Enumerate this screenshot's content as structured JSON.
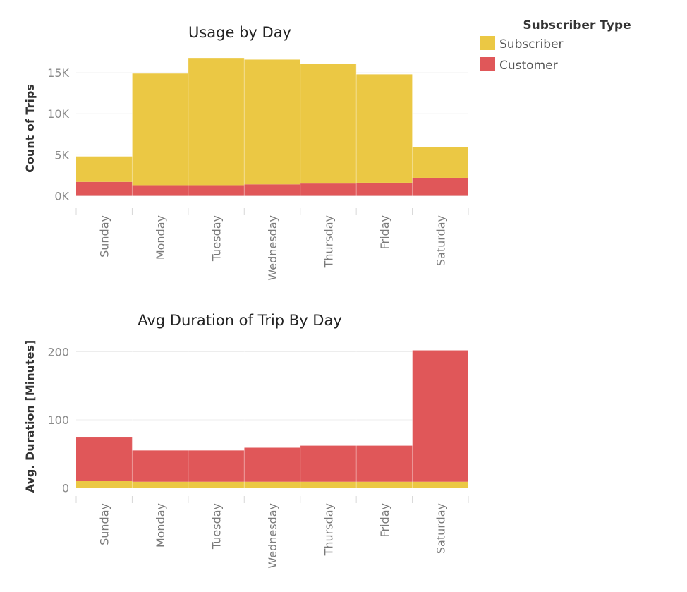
{
  "legend": {
    "title": "Subscriber Type",
    "items": [
      {
        "label": "Subscriber",
        "color": "#EBC844"
      },
      {
        "label": "Customer",
        "color": "#E05759"
      }
    ]
  },
  "chart_data": [
    {
      "type": "bar",
      "stacked": true,
      "title": "Usage by Day",
      "xlabel": "",
      "ylabel": "Count of Trips",
      "categories": [
        "Sunday",
        "Monday",
        "Tuesday",
        "Wednesday",
        "Thursday",
        "Friday",
        "Saturday"
      ],
      "series": [
        {
          "name": "Customer",
          "color": "#E05759",
          "values": [
            1700,
            1300,
            1300,
            1400,
            1500,
            1600,
            2200
          ]
        },
        {
          "name": "Subscriber",
          "color": "#EBC844",
          "values": [
            3100,
            13600,
            15500,
            15200,
            14600,
            13200,
            3700
          ]
        }
      ],
      "yticks": [
        0,
        5000,
        10000,
        15000
      ],
      "ytick_labels": [
        "0K",
        "5K",
        "10K",
        "15K"
      ],
      "ylim": [
        -1500,
        17500
      ],
      "grid": true
    },
    {
      "type": "bar",
      "stacked": true,
      "title": "Avg Duration of Trip By Day",
      "xlabel": "",
      "ylabel": "Avg. Duration [Minutes]",
      "categories": [
        "Sunday",
        "Monday",
        "Tuesday",
        "Wednesday",
        "Thursday",
        "Friday",
        "Saturday"
      ],
      "series": [
        {
          "name": "Subscriber",
          "color": "#EBC844",
          "values": [
            10,
            9,
            9,
            9,
            9,
            9,
            9
          ]
        },
        {
          "name": "Customer",
          "color": "#E05759",
          "values": [
            64,
            46,
            46,
            50,
            53,
            53,
            193
          ]
        }
      ],
      "yticks": [
        0,
        100,
        200
      ],
      "ytick_labels": [
        "0",
        "100",
        "200"
      ],
      "ylim": [
        -12,
        215
      ],
      "grid": true
    }
  ]
}
